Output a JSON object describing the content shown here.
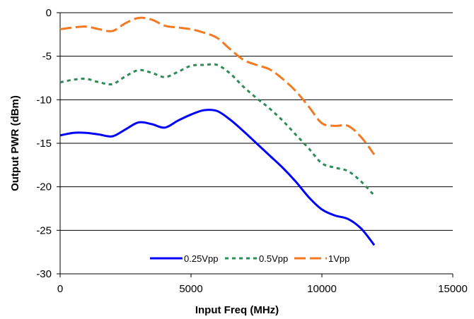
{
  "chart_data": {
    "type": "line",
    "title": "",
    "xlabel": "Input Freq (MHz)",
    "ylabel": "Output PWR (dBm)",
    "xlim": [
      0,
      15000
    ],
    "ylim": [
      -30,
      0
    ],
    "xticks": [
      0,
      5000,
      10000,
      15000
    ],
    "yticks": [
      0,
      -5,
      -10,
      -15,
      -20,
      -25,
      -30
    ],
    "xtick_labels": [
      "0",
      "5000",
      "10000",
      "15000"
    ],
    "ytick_labels": [
      "0",
      "-5",
      "-10",
      "-15",
      "-20",
      "-25",
      "-30"
    ],
    "grid": "horizontal",
    "legend_position": "bottom-center",
    "series": [
      {
        "name": "0.25Vpp",
        "color": "#0000ff",
        "dash": "solid",
        "x": [
          0,
          500,
          1000,
          1500,
          2000,
          2500,
          3000,
          3500,
          4000,
          4500,
          5000,
          5500,
          6000,
          6500,
          7000,
          7500,
          8000,
          8500,
          9000,
          9500,
          10000,
          10500,
          11000,
          11500,
          12000
        ],
        "y": [
          -14.1,
          -13.8,
          -13.8,
          -14.0,
          -14.2,
          -13.4,
          -12.6,
          -12.8,
          -13.2,
          -12.4,
          -11.7,
          -11.2,
          -11.3,
          -12.3,
          -13.6,
          -15.0,
          -16.4,
          -17.8,
          -19.4,
          -21.2,
          -22.6,
          -23.3,
          -23.7,
          -24.8,
          -26.7
        ]
      },
      {
        "name": "0.5Vpp",
        "color": "#2e8b57",
        "dash": "dotted",
        "x": [
          0,
          500,
          1000,
          1500,
          2000,
          2500,
          3000,
          3500,
          4000,
          4500,
          5000,
          5500,
          6000,
          6500,
          7000,
          7500,
          8000,
          8500,
          9000,
          9500,
          10000,
          10500,
          11000,
          11500,
          12000
        ],
        "y": [
          -8.0,
          -7.7,
          -7.6,
          -8.0,
          -8.2,
          -7.3,
          -6.6,
          -6.9,
          -7.4,
          -6.8,
          -6.1,
          -6.0,
          -6.0,
          -7.0,
          -8.5,
          -9.8,
          -11.0,
          -12.4,
          -14.0,
          -15.6,
          -17.3,
          -17.8,
          -18.2,
          -19.4,
          -21.0
        ]
      },
      {
        "name": "1Vpp",
        "color": "#f47920",
        "dash": "dashed",
        "x": [
          0,
          500,
          1000,
          1500,
          2000,
          2500,
          3000,
          3500,
          4000,
          4500,
          5000,
          5500,
          6000,
          6500,
          7000,
          7500,
          8000,
          8500,
          9000,
          9500,
          10000,
          10500,
          11000,
          11500,
          12000
        ],
        "y": [
          -1.9,
          -1.7,
          -1.6,
          -1.9,
          -2.1,
          -1.2,
          -0.6,
          -0.8,
          -1.5,
          -1.7,
          -1.9,
          -2.3,
          -2.9,
          -4.2,
          -5.4,
          -6.0,
          -6.5,
          -7.6,
          -9.0,
          -10.8,
          -12.7,
          -13.0,
          -13.0,
          -14.3,
          -16.3
        ]
      }
    ]
  }
}
